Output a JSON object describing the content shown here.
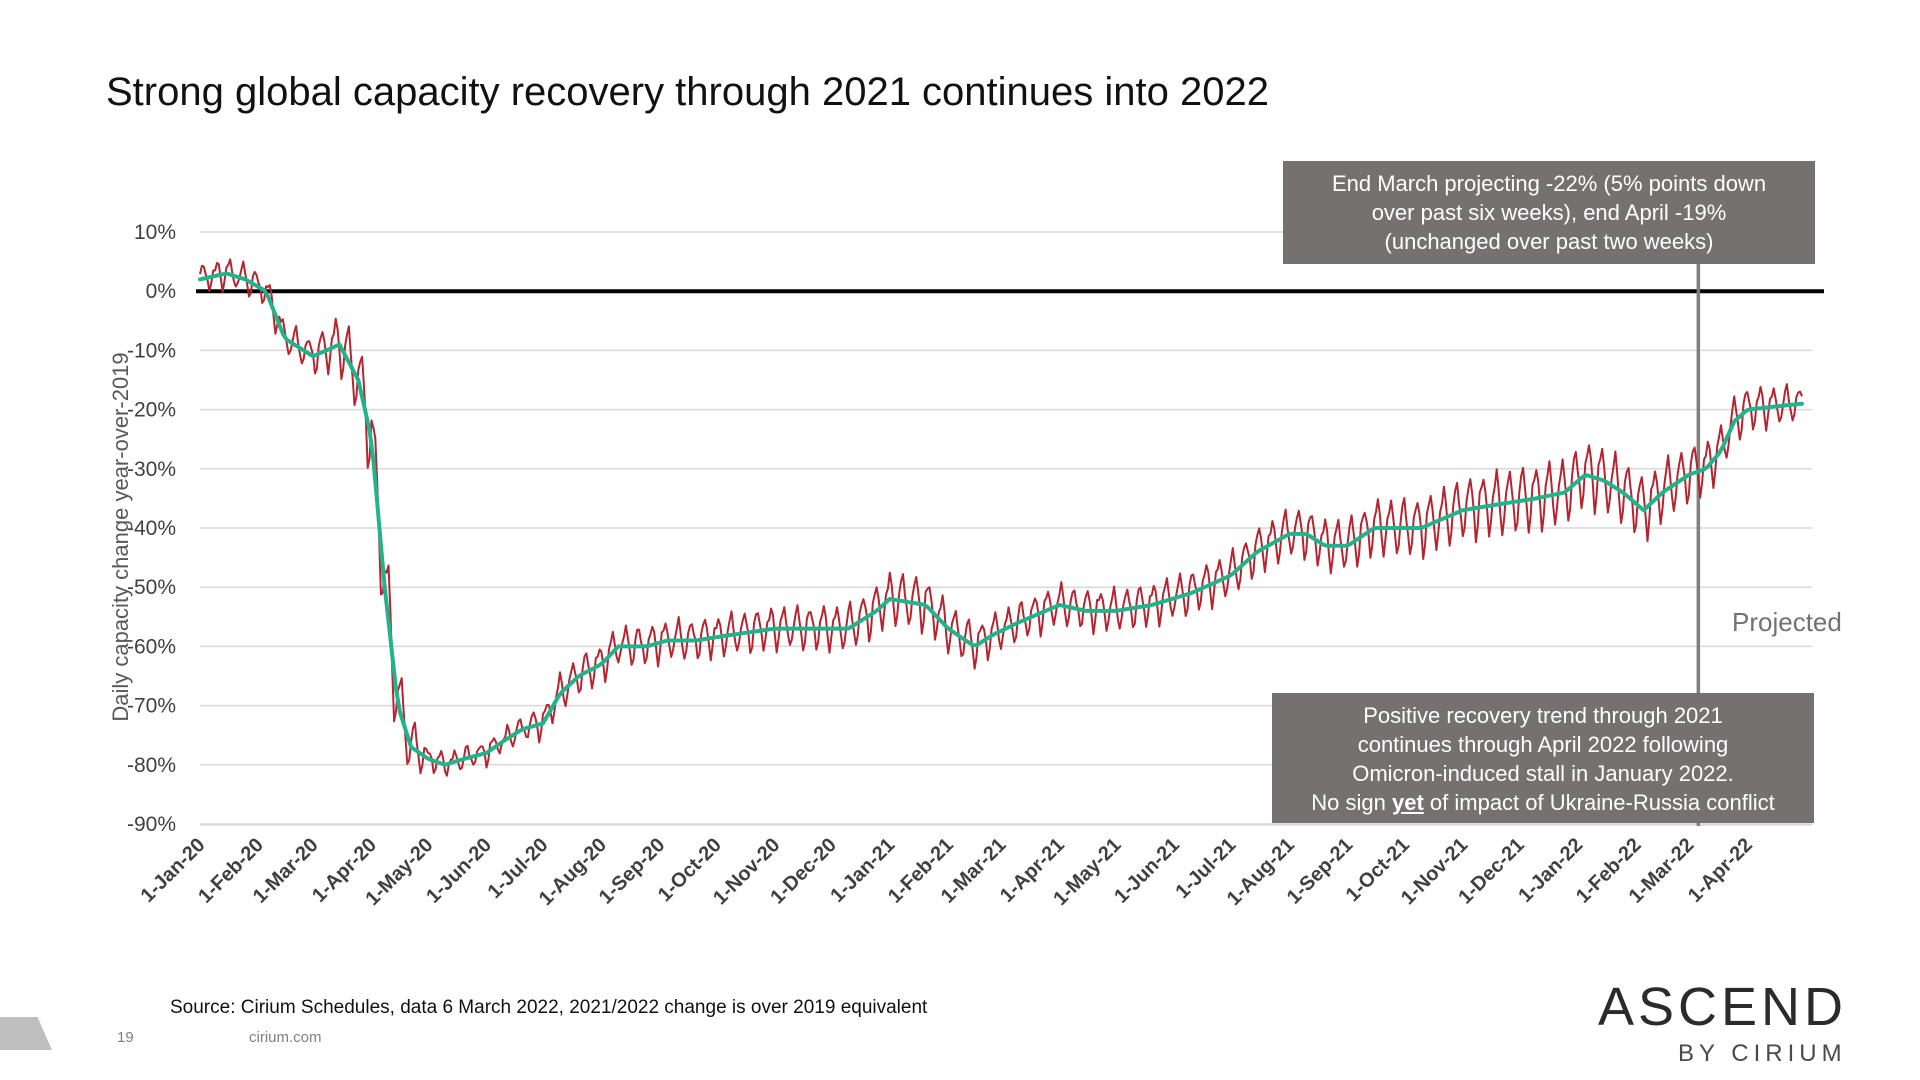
{
  "slide": {
    "title": "Strong global capacity recovery through 2021 continues into 2022",
    "source": "Source: Cirium Schedules, data 6 March 2022, 2021/2022 change is over 2019 equivalent",
    "page_number": "19",
    "website": "cirium.com",
    "logo": {
      "main": "ASCEND",
      "sub": "BY CIRIUM"
    }
  },
  "callouts": {
    "top": {
      "lines": [
        "End March projecting -22% (5% points down",
        "over past six weeks), end April -19%",
        "(unchanged over past two weeks)"
      ]
    },
    "bottom": {
      "lines": [
        "Positive recovery trend through 2021",
        "continues through April 2022 following",
        "Omicron-induced stall in January 2022."
      ],
      "last_line": {
        "before": "No sign ",
        "emphasis": "yet",
        "after": " of impact of Ukraine-Russia conflict"
      }
    },
    "projected_label": "Projected"
  },
  "colors": {
    "daily": "#b5252f",
    "trend": "#21b38b",
    "zero_line": "#000000",
    "grid": "#d9d9d9",
    "projection_marker": "#7f7f7f",
    "callout_bg": "#767171"
  },
  "chart_data": {
    "type": "line",
    "title": "",
    "ylabel": "Daily capacity change year-over-2019",
    "xlabel": "",
    "ylim": [
      -90,
      10
    ],
    "yticks": [
      10,
      0,
      -10,
      -20,
      -30,
      -40,
      -50,
      -60,
      -70,
      -80,
      -90
    ],
    "ytick_labels": [
      "10%",
      "0%",
      "-10%",
      "-20%",
      "-30%",
      "-40%",
      "-50%",
      "-60%",
      "-70%",
      "-80%",
      "-90%"
    ],
    "x_range": [
      "2020-01-01",
      "2022-04-30"
    ],
    "xticks": [
      "2020-01-01",
      "2020-02-01",
      "2020-03-01",
      "2020-04-01",
      "2020-05-01",
      "2020-06-01",
      "2020-07-01",
      "2020-08-01",
      "2020-09-01",
      "2020-10-01",
      "2020-11-01",
      "2020-12-01",
      "2021-01-01",
      "2021-02-01",
      "2021-03-01",
      "2021-04-01",
      "2021-05-01",
      "2021-06-01",
      "2021-07-01",
      "2021-08-01",
      "2021-09-01",
      "2021-10-01",
      "2021-11-01",
      "2021-12-01",
      "2022-01-01",
      "2022-02-01",
      "2022-03-01",
      "2022-04-01"
    ],
    "xtick_labels": [
      "1-Jan-20",
      "1-Feb-20",
      "1-Mar-20",
      "1-Apr-20",
      "1-May-20",
      "1-Jun-20",
      "1-Jul-20",
      "1-Aug-20",
      "1-Sep-20",
      "1-Oct-20",
      "1-Nov-20",
      "1-Dec-20",
      "1-Jan-21",
      "1-Feb-21",
      "1-Mar-21",
      "1-Apr-21",
      "1-May-21",
      "1-Jun-21",
      "1-Jul-21",
      "1-Aug-21",
      "1-Sep-21",
      "1-Oct-21",
      "1-Nov-21",
      "1-Dec-21",
      "1-Jan-22",
      "1-Feb-22",
      "1-Mar-22",
      "1-Apr-22"
    ],
    "reference_line": {
      "y": 0
    },
    "projection_start": "2022-03-06",
    "grid": "horizontal",
    "series": [
      {
        "kind": "daily",
        "amplitude": [
          [
            "2020-01-01",
            2.5
          ],
          [
            "2020-03-01",
            3
          ],
          [
            "2020-04-10",
            10
          ],
          [
            "2020-05-01",
            2
          ],
          [
            "2020-06-15",
            2
          ],
          [
            "2020-07-15",
            3.5
          ],
          [
            "2020-09-01",
            3.5
          ],
          [
            "2020-12-01",
            4
          ],
          [
            "2021-01-15",
            5
          ],
          [
            "2021-03-01",
            3.5
          ],
          [
            "2021-07-01",
            4
          ],
          [
            "2021-12-01",
            6
          ],
          [
            "2022-02-01",
            6
          ],
          [
            "2022-03-05",
            5
          ],
          [
            "2022-04-30",
            3
          ]
        ]
      },
      {
        "kind": "trend",
        "points": [
          [
            "2020-01-01",
            2
          ],
          [
            "2020-01-15",
            3
          ],
          [
            "2020-01-25",
            2
          ],
          [
            "2020-02-05",
            0
          ],
          [
            "2020-02-15",
            -8
          ],
          [
            "2020-03-01",
            -11
          ],
          [
            "2020-03-15",
            -9
          ],
          [
            "2020-03-25",
            -15
          ],
          [
            "2020-04-01",
            -25
          ],
          [
            "2020-04-08",
            -50
          ],
          [
            "2020-04-15",
            -70
          ],
          [
            "2020-04-22",
            -77
          ],
          [
            "2020-05-01",
            -79
          ],
          [
            "2020-05-10",
            -80
          ],
          [
            "2020-05-20",
            -79
          ],
          [
            "2020-06-01",
            -78
          ],
          [
            "2020-06-10",
            -76
          ],
          [
            "2020-06-20",
            -74
          ],
          [
            "2020-07-01",
            -73
          ],
          [
            "2020-07-10",
            -68
          ],
          [
            "2020-07-20",
            -65
          ],
          [
            "2020-08-01",
            -63
          ],
          [
            "2020-08-10",
            -60
          ],
          [
            "2020-08-25",
            -60
          ],
          [
            "2020-09-05",
            -59
          ],
          [
            "2020-09-20",
            -59
          ],
          [
            "2020-10-10",
            -58
          ],
          [
            "2020-11-01",
            -57
          ],
          [
            "2020-11-20",
            -57
          ],
          [
            "2020-12-10",
            -57
          ],
          [
            "2020-12-25",
            -54
          ],
          [
            "2021-01-01",
            -52
          ],
          [
            "2021-01-20",
            -53
          ],
          [
            "2021-02-01",
            -57
          ],
          [
            "2021-02-15",
            -60
          ],
          [
            "2021-02-25",
            -58
          ],
          [
            "2021-03-10",
            -56
          ],
          [
            "2021-04-01",
            -53
          ],
          [
            "2021-04-15",
            -54
          ],
          [
            "2021-05-01",
            -54
          ],
          [
            "2021-05-20",
            -53
          ],
          [
            "2021-06-10",
            -51
          ],
          [
            "2021-07-01",
            -48
          ],
          [
            "2021-07-15",
            -44
          ],
          [
            "2021-08-01",
            -41
          ],
          [
            "2021-08-10",
            -41
          ],
          [
            "2021-08-20",
            -43
          ],
          [
            "2021-09-01",
            -43
          ],
          [
            "2021-09-15",
            -40
          ],
          [
            "2021-10-10",
            -40
          ],
          [
            "2021-11-01",
            -37
          ],
          [
            "2021-11-20",
            -36
          ],
          [
            "2021-12-10",
            -35
          ],
          [
            "2021-12-25",
            -34
          ],
          [
            "2022-01-05",
            -31
          ],
          [
            "2022-01-15",
            -32
          ],
          [
            "2022-01-25",
            -34
          ],
          [
            "2022-02-05",
            -37
          ],
          [
            "2022-02-15",
            -34
          ],
          [
            "2022-03-01",
            -31
          ],
          [
            "2022-03-10",
            -30
          ],
          [
            "2022-03-18",
            -27
          ],
          [
            "2022-03-25",
            -22
          ],
          [
            "2022-04-01",
            -20
          ],
          [
            "2022-04-30",
            -19
          ]
        ]
      }
    ]
  }
}
